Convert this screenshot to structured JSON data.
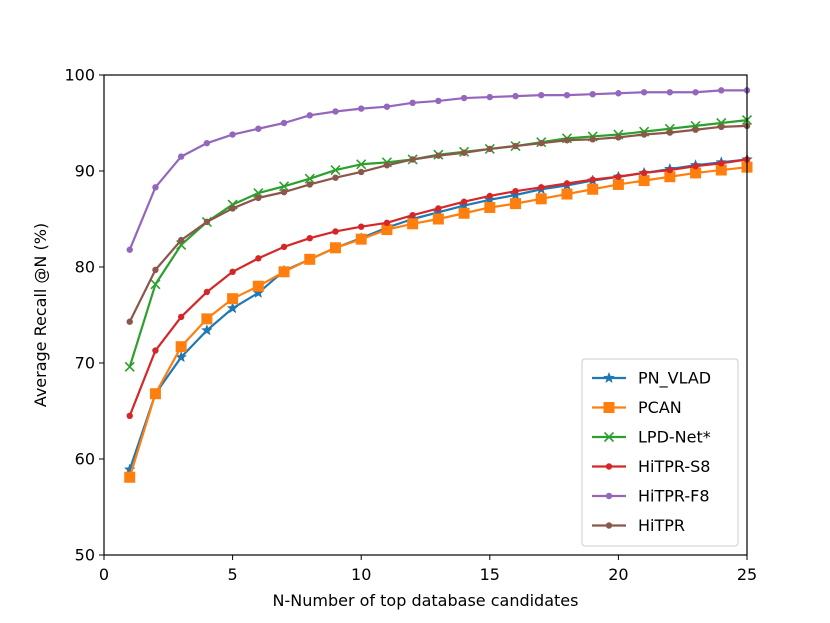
{
  "chart_data": {
    "type": "line",
    "title": "",
    "xlabel": "N-Number of top database candidates",
    "ylabel": "Average Recall @N (%)",
    "xlim": [
      0,
      25
    ],
    "ylim": [
      50,
      100
    ],
    "xticks": [
      0,
      5,
      10,
      15,
      20,
      25
    ],
    "yticks": [
      50,
      60,
      70,
      80,
      90,
      100
    ],
    "grid": false,
    "legend_position": "lower-right",
    "x": [
      1,
      2,
      3,
      4,
      5,
      6,
      7,
      8,
      9,
      10,
      11,
      12,
      13,
      14,
      15,
      16,
      17,
      18,
      19,
      20,
      21,
      22,
      23,
      24,
      25
    ],
    "series": [
      {
        "name": "PN_VLAD",
        "color": "#1f77b4",
        "marker": "star",
        "values": [
          58.9,
          66.8,
          70.6,
          73.4,
          75.7,
          77.3,
          79.6,
          80.8,
          82.0,
          83.0,
          84.1,
          85.0,
          85.7,
          86.4,
          87.0,
          87.5,
          88.1,
          88.5,
          89.0,
          89.4,
          89.8,
          90.2,
          90.6,
          90.9,
          91.2
        ]
      },
      {
        "name": "PCAN",
        "color": "#ff7f0e",
        "marker": "square",
        "values": [
          58.1,
          66.8,
          71.7,
          74.6,
          76.7,
          78.0,
          79.5,
          80.8,
          82.0,
          82.9,
          83.9,
          84.5,
          85.0,
          85.6,
          86.2,
          86.6,
          87.1,
          87.6,
          88.1,
          88.6,
          89.0,
          89.4,
          89.8,
          90.1,
          90.4
        ]
      },
      {
        "name": "LPD-Net*",
        "color": "#2ca02c",
        "marker": "x",
        "values": [
          69.6,
          78.2,
          82.3,
          84.7,
          86.5,
          87.7,
          88.4,
          89.2,
          90.1,
          90.7,
          90.9,
          91.2,
          91.7,
          92.0,
          92.3,
          92.6,
          93.0,
          93.4,
          93.6,
          93.8,
          94.1,
          94.4,
          94.7,
          95.0,
          95.3
        ]
      },
      {
        "name": "HiTPR-S8",
        "color": "#d62728",
        "marker": "dot",
        "values": [
          64.5,
          71.3,
          74.8,
          77.4,
          79.5,
          80.9,
          82.1,
          83.0,
          83.7,
          84.2,
          84.6,
          85.4,
          86.1,
          86.8,
          87.4,
          87.9,
          88.3,
          88.7,
          89.1,
          89.4,
          89.8,
          90.1,
          90.5,
          90.8,
          91.2
        ]
      },
      {
        "name": "HiTPR-F8",
        "color": "#9467bd",
        "marker": "dot",
        "values": [
          81.8,
          88.3,
          91.5,
          92.9,
          93.8,
          94.4,
          95.0,
          95.8,
          96.2,
          96.5,
          96.7,
          97.1,
          97.3,
          97.6,
          97.7,
          97.8,
          97.9,
          97.9,
          98.0,
          98.1,
          98.2,
          98.2,
          98.2,
          98.4,
          98.4
        ]
      },
      {
        "name": "HiTPR",
        "color": "#8c564b",
        "marker": "dot",
        "values": [
          74.3,
          79.7,
          82.8,
          84.7,
          86.1,
          87.2,
          87.8,
          88.6,
          89.3,
          89.9,
          90.6,
          91.2,
          91.6,
          91.9,
          92.3,
          92.6,
          92.9,
          93.2,
          93.3,
          93.5,
          93.8,
          94.0,
          94.3,
          94.6,
          94.7
        ]
      }
    ]
  }
}
